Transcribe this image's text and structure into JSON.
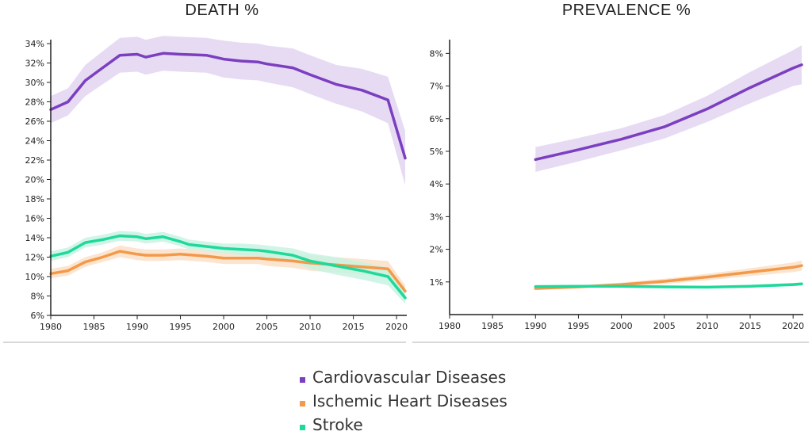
{
  "colors": {
    "cardiovascular": "#7b3fbf",
    "ischemic": "#f39a4a",
    "stroke": "#1fd99a",
    "band_cardiovascular": "#e3d5f2",
    "band_ischemic": "#fbe0c8",
    "band_stroke": "#c8f3e3"
  },
  "legend": [
    {
      "key": "cardiovascular",
      "label": "Cardiovascular Diseases"
    },
    {
      "key": "ischemic",
      "label": "Ischemic Heart Diseases"
    },
    {
      "key": "stroke",
      "label": "Stroke"
    }
  ],
  "chart_data": [
    {
      "type": "area",
      "title": "DEATH %",
      "xlabel": "",
      "ylabel": "",
      "xlim": [
        1980,
        2021
      ],
      "ylim": [
        6,
        34
      ],
      "x_ticks": [
        1980,
        1985,
        1990,
        1995,
        2000,
        2005,
        2010,
        2015,
        2020
      ],
      "y_ticks": [
        "6%",
        "8%",
        "10%",
        "12%",
        "14%",
        "16%",
        "18%",
        "20%",
        "22%",
        "24%",
        "26%",
        "28%",
        "30%",
        "32%",
        "34%"
      ],
      "grid": false,
      "series": [
        {
          "name": "Cardiovascular Diseases",
          "key": "cardiovascular",
          "points": [
            [
              1980,
              27.2
            ],
            [
              1982,
              28.0
            ],
            [
              1984,
              30.2
            ],
            [
              1986,
              31.5
            ],
            [
              1988,
              32.8
            ],
            [
              1990,
              32.9
            ],
            [
              1991,
              32.6
            ],
            [
              1993,
              33.0
            ],
            [
              1995,
              32.9
            ],
            [
              1998,
              32.8
            ],
            [
              2000,
              32.4
            ],
            [
              2002,
              32.2
            ],
            [
              2004,
              32.1
            ],
            [
              2005,
              31.9
            ],
            [
              2008,
              31.5
            ],
            [
              2010,
              30.8
            ],
            [
              2013,
              29.8
            ],
            [
              2016,
              29.2
            ],
            [
              2019,
              28.2
            ],
            [
              2021,
              22.2
            ]
          ],
          "band": [
            1.4,
            1.4,
            1.6,
            1.7,
            1.8,
            1.8,
            1.8,
            1.8,
            1.8,
            1.8,
            1.9,
            1.9,
            1.9,
            1.9,
            2.0,
            2.0,
            2.0,
            2.2,
            2.4,
            2.8
          ]
        },
        {
          "name": "Ischemic Heart Diseases",
          "key": "ischemic",
          "points": [
            [
              1980,
              10.3
            ],
            [
              1982,
              10.6
            ],
            [
              1984,
              11.5
            ],
            [
              1986,
              12.0
            ],
            [
              1988,
              12.6
            ],
            [
              1990,
              12.3
            ],
            [
              1991,
              12.2
            ],
            [
              1993,
              12.2
            ],
            [
              1995,
              12.3
            ],
            [
              1998,
              12.1
            ],
            [
              2000,
              11.9
            ],
            [
              2002,
              11.9
            ],
            [
              2004,
              11.9
            ],
            [
              2005,
              11.8
            ],
            [
              2008,
              11.6
            ],
            [
              2010,
              11.4
            ],
            [
              2013,
              11.2
            ],
            [
              2016,
              11.0
            ],
            [
              2019,
              10.8
            ],
            [
              2021,
              8.5
            ]
          ],
          "band": [
            0.5,
            0.5,
            0.5,
            0.5,
            0.6,
            0.6,
            0.6,
            0.6,
            0.6,
            0.6,
            0.6,
            0.6,
            0.6,
            0.7,
            0.7,
            0.8,
            0.8,
            0.8,
            0.8,
            0.6
          ]
        },
        {
          "name": "Stroke",
          "key": "stroke",
          "points": [
            [
              1980,
              12.1
            ],
            [
              1982,
              12.5
            ],
            [
              1984,
              13.5
            ],
            [
              1986,
              13.8
            ],
            [
              1988,
              14.2
            ],
            [
              1990,
              14.1
            ],
            [
              1991,
              13.9
            ],
            [
              1993,
              14.1
            ],
            [
              1995,
              13.6
            ],
            [
              1996,
              13.3
            ],
            [
              1998,
              13.1
            ],
            [
              2000,
              12.9
            ],
            [
              2002,
              12.8
            ],
            [
              2004,
              12.7
            ],
            [
              2005,
              12.6
            ],
            [
              2008,
              12.2
            ],
            [
              2010,
              11.6
            ],
            [
              2013,
              11.1
            ],
            [
              2016,
              10.6
            ],
            [
              2019,
              10.0
            ],
            [
              2021,
              7.8
            ]
          ],
          "band": [
            0.5,
            0.5,
            0.5,
            0.5,
            0.5,
            0.5,
            0.5,
            0.5,
            0.5,
            0.5,
            0.5,
            0.5,
            0.6,
            0.6,
            0.6,
            0.7,
            0.8,
            0.9,
            0.9,
            0.9,
            0.6
          ]
        }
      ]
    },
    {
      "type": "area",
      "title": "PREVALENCE  %",
      "xlabel": "",
      "ylabel": "",
      "xlim": [
        1980,
        2021
      ],
      "ylim": [
        0,
        8.3
      ],
      "x_ticks": [
        1980,
        1985,
        1990,
        1995,
        2000,
        2005,
        2010,
        2015,
        2020
      ],
      "y_ticks": [
        "1%",
        "2%",
        "3%",
        "4%",
        "5%",
        "6%",
        "7%",
        "8%"
      ],
      "grid": false,
      "series": [
        {
          "name": "Cardiovascular Diseases",
          "key": "cardiovascular",
          "points": [
            [
              1990,
              4.75
            ],
            [
              1995,
              5.05
            ],
            [
              2000,
              5.37
            ],
            [
              2005,
              5.75
            ],
            [
              2010,
              6.3
            ],
            [
              2015,
              6.95
            ],
            [
              2020,
              7.55
            ],
            [
              2021,
              7.65
            ]
          ],
          "band": [
            0.38,
            0.36,
            0.34,
            0.36,
            0.4,
            0.48,
            0.55,
            0.6
          ]
        },
        {
          "name": "Ischemic Heart Diseases",
          "key": "ischemic",
          "points": [
            [
              1990,
              0.8
            ],
            [
              1995,
              0.85
            ],
            [
              2000,
              0.92
            ],
            [
              2005,
              1.02
            ],
            [
              2010,
              1.15
            ],
            [
              2015,
              1.3
            ],
            [
              2020,
              1.45
            ],
            [
              2021,
              1.5
            ]
          ],
          "band": [
            0.05,
            0.05,
            0.06,
            0.08,
            0.1,
            0.12,
            0.15,
            0.16
          ]
        },
        {
          "name": "Stroke",
          "key": "stroke",
          "points": [
            [
              1990,
              0.86
            ],
            [
              1995,
              0.87
            ],
            [
              2000,
              0.87
            ],
            [
              2005,
              0.85
            ],
            [
              2010,
              0.84
            ],
            [
              2015,
              0.87
            ],
            [
              2020,
              0.92
            ],
            [
              2021,
              0.94
            ]
          ],
          "band": [
            0.04,
            0.04,
            0.04,
            0.04,
            0.04,
            0.04,
            0.05,
            0.05
          ]
        }
      ]
    }
  ]
}
